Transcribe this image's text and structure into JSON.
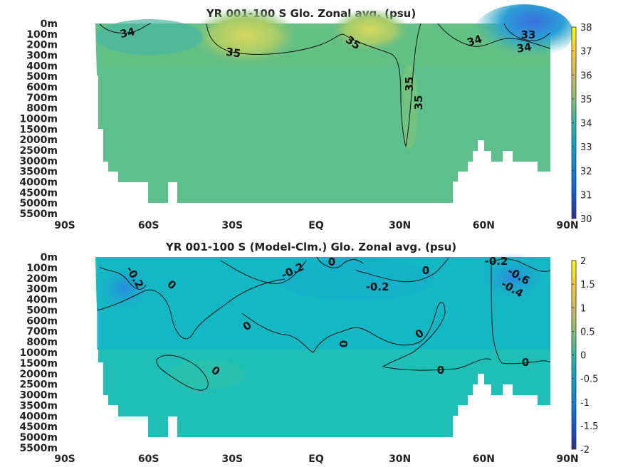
{
  "chart_data": [
    {
      "type": "heatmap",
      "title": "YR 001-100 S Glo. Zonal avg. (psu)",
      "xlabel": "",
      "ylabel": "",
      "x_ticks": [
        "90S",
        "60S",
        "30S",
        "EQ",
        "30N",
        "60N",
        "90N"
      ],
      "y_ticks": [
        "0m",
        "100m",
        "200m",
        "300m",
        "400m",
        "500m",
        "600m",
        "700m",
        "800m",
        "1000m",
        "1500m",
        "2000m",
        "2500m",
        "3000m",
        "3500m",
        "4000m",
        "4500m",
        "5000m",
        "5500m"
      ],
      "colorbar": {
        "range": [
          30,
          38
        ],
        "ticks": [
          "38",
          "37",
          "36",
          "35",
          "34",
          "33",
          "32",
          "31",
          "30"
        ]
      },
      "contour_labels": [
        {
          "text": "34",
          "lat": -67,
          "depth_index": 1.0
        },
        {
          "text": "35",
          "lat": -28,
          "depth_index": 2.7
        },
        {
          "text": "35",
          "lat": 14,
          "depth_index": 1.8
        },
        {
          "text": "35",
          "lat": 35,
          "depth_index": 5.7
        },
        {
          "text": "35",
          "lat": 38,
          "depth_index": 7.2
        },
        {
          "text": "34",
          "lat": 62,
          "depth_index": 1.6
        },
        {
          "text": "33",
          "lat": 80,
          "depth_index": 1.0
        },
        {
          "text": "34",
          "lat": 80,
          "depth_index": 2.2
        }
      ]
    },
    {
      "type": "heatmap",
      "title": "YR 001-100 S (Model-Clm.) Glo. Zonal avg. (psu)",
      "xlabel": "",
      "ylabel": "",
      "x_ticks": [
        "90S",
        "60S",
        "30S",
        "EQ",
        "30N",
        "60N",
        "90N"
      ],
      "y_ticks": [
        "0m",
        "100m",
        "200m",
        "300m",
        "400m",
        "500m",
        "600m",
        "700m",
        "800m",
        "1000m",
        "1500m",
        "2000m",
        "2500m",
        "3000m",
        "3500m",
        "4000m",
        "4500m",
        "5000m",
        "5500m"
      ],
      "colorbar": {
        "range": [
          -2,
          2
        ],
        "ticks": [
          "2",
          "1.5",
          "1",
          "0.5",
          "0",
          "-0.5",
          "-1",
          "-1.5",
          "-2"
        ]
      },
      "contour_labels": [
        {
          "text": "-0.2",
          "lat": -72,
          "depth_index": 2.3
        },
        {
          "text": "0",
          "lat": -52,
          "depth_index": 2.8
        },
        {
          "text": "-0.2",
          "lat": -6,
          "depth_index": 1.4
        },
        {
          "text": "0",
          "lat": 8,
          "depth_index": 0.4
        },
        {
          "text": "-0.2",
          "lat": 25,
          "depth_index": 2.9
        },
        {
          "text": "0",
          "lat": 41,
          "depth_index": 1.2
        },
        {
          "text": "-0.2",
          "lat": 66,
          "depth_index": 0.4
        },
        {
          "text": "-0.6",
          "lat": 73,
          "depth_index": 1.8
        },
        {
          "text": "-0.4",
          "lat": 74,
          "depth_index": 2.8
        },
        {
          "text": "0",
          "lat": -23,
          "depth_index": 6.6
        },
        {
          "text": "0",
          "lat": 40,
          "depth_index": 7.2
        },
        {
          "text": "0",
          "lat": 13,
          "depth_index": 8.4
        },
        {
          "text": "0",
          "lat": -35,
          "depth_index": 10.9
        },
        {
          "text": "0",
          "lat": 47,
          "depth_index": 10.7
        },
        {
          "text": "0",
          "lat": 77,
          "depth_index": 10.0
        }
      ]
    }
  ]
}
